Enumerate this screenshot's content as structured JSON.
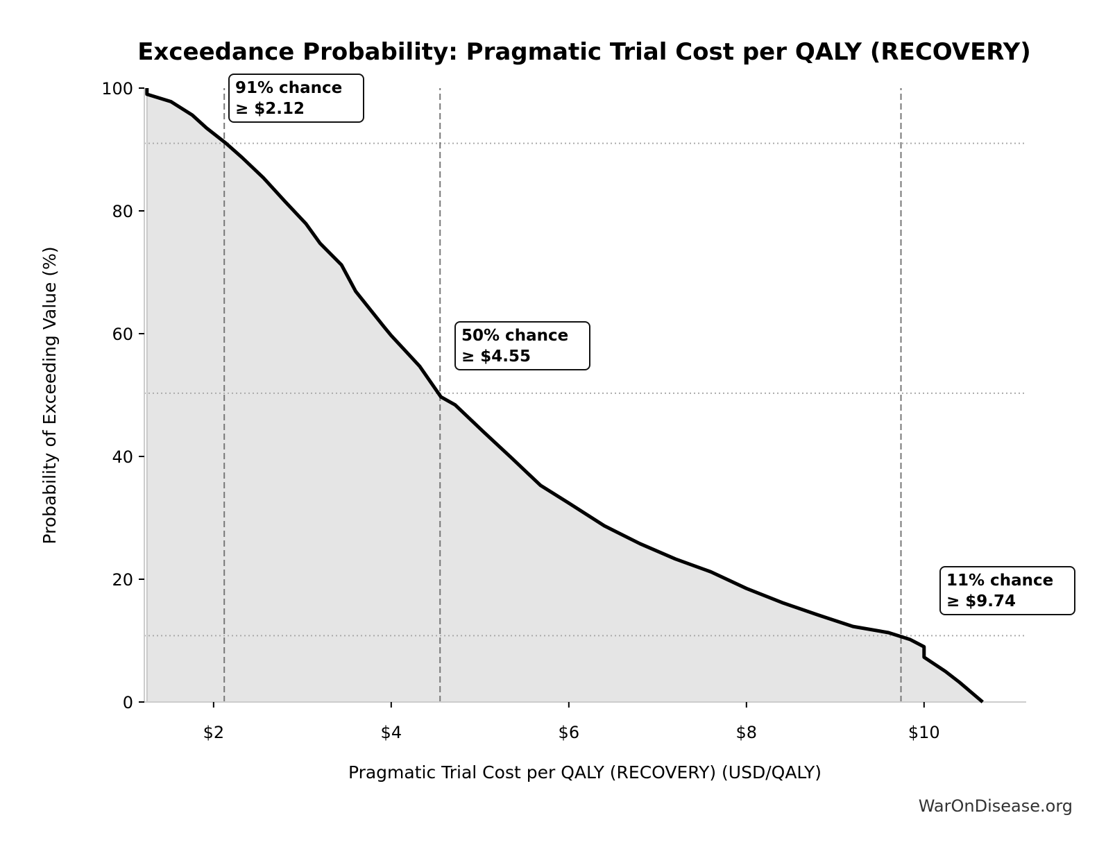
{
  "chart_data": {
    "type": "area",
    "title": "Exceedance Probability: Pragmatic Trial Cost per QALY (RECOVERY)",
    "xlabel": "Pragmatic Trial Cost per QALY (RECOVERY) (USD/QALY)",
    "ylabel": "Probability of Exceeding Value (%)",
    "xlim": [
      1.22,
      11.15
    ],
    "ylim": [
      0,
      100
    ],
    "x_ticks": [
      2,
      4,
      6,
      8,
      10
    ],
    "x_tick_labels": [
      "$2",
      "$4",
      "$6",
      "$8",
      "$10"
    ],
    "y_ticks": [
      0,
      20,
      40,
      60,
      80,
      100
    ],
    "y_tick_labels": [
      "0",
      "20",
      "40",
      "60",
      "80",
      "100"
    ],
    "grid": false,
    "line_color": "#000000",
    "fill_color": "#e5e5e5",
    "series": [
      {
        "x": [
          1.25,
          1.25,
          1.52,
          1.76,
          1.92,
          2.14,
          2.32,
          2.56,
          2.8,
          3.04,
          3.2,
          3.44,
          3.6,
          3.92,
          4.0,
          4.32,
          4.56,
          4.72,
          5.04,
          5.36,
          5.68,
          6.0,
          6.4,
          6.8,
          7.2,
          7.6,
          8.0,
          8.4,
          8.8,
          9.2,
          9.6,
          9.84,
          10.0,
          10.0,
          10.24,
          10.4,
          10.66
        ],
        "y": [
          100,
          99,
          97.8,
          95.6,
          93.5,
          91,
          88.7,
          85.4,
          81.6,
          77.9,
          74.7,
          71.2,
          66.9,
          61.1,
          59.7,
          54.7,
          49.7,
          48.4,
          44,
          39.7,
          35.3,
          32.4,
          28.7,
          25.8,
          23.3,
          21.2,
          18.5,
          16.2,
          14.2,
          12.3,
          11.3,
          10.2,
          9,
          7.3,
          5,
          3.2,
          0
        ]
      }
    ],
    "annotations": [
      {
        "x": 2.12,
        "y": 91,
        "line1": "91% chance",
        "line2": "≥ $2.12"
      },
      {
        "x": 4.55,
        "y": 50.3,
        "line1": "50% chance",
        "line2": "≥ $4.55"
      },
      {
        "x": 9.74,
        "y": 10.8,
        "line1": "11% chance",
        "line2": "≥ $9.74"
      }
    ]
  },
  "watermark": "WarOnDisease.org"
}
